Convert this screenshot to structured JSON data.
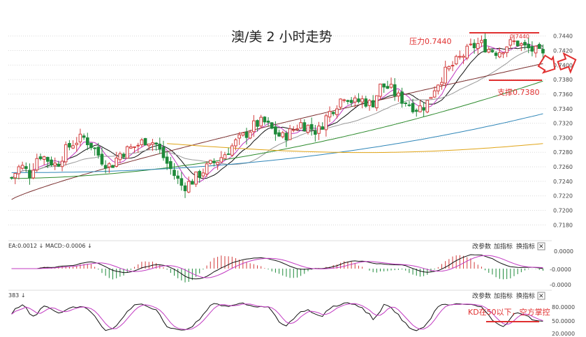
{
  "chart_data": {
    "type": "candlestick",
    "title": "澳/美 2 小时走势",
    "main_panel": {
      "y_ticks": [
        "0.7440",
        "0.7420",
        "0.7400",
        "0.7380",
        "0.7360",
        "0.7340",
        "0.7320",
        "0.7300",
        "0.7280",
        "0.7260",
        "0.7240",
        "0.7220",
        "0.7200",
        "0.7180"
      ],
      "ylim": [
        0.7165,
        0.7455
      ],
      "grid": true,
      "annotations": {
        "resistance": {
          "label": "压力0.7440",
          "value": 0.744,
          "peak_label": "0.7440"
        },
        "support": {
          "label": "支撑0.7380",
          "value": 0.738
        }
      },
      "price_path": [
        0.7245,
        0.7262,
        0.725,
        0.7278,
        0.727,
        0.7262,
        0.7283,
        0.7295,
        0.73,
        0.7288,
        0.727,
        0.726,
        0.7278,
        0.7284,
        0.729,
        0.7298,
        0.7292,
        0.727,
        0.725,
        0.7232,
        0.724,
        0.7252,
        0.7262,
        0.727,
        0.7282,
        0.7295,
        0.7305,
        0.7318,
        0.7322,
        0.731,
        0.73,
        0.7308,
        0.732,
        0.7315,
        0.7308,
        0.733,
        0.7345,
        0.736,
        0.7348,
        0.7352,
        0.7345,
        0.7372,
        0.7368,
        0.7355,
        0.7348,
        0.734,
        0.7345,
        0.737,
        0.7388,
        0.74,
        0.7412,
        0.7424,
        0.743,
        0.7422,
        0.7418,
        0.7428,
        0.7432,
        0.7424,
        0.742,
        0.7412
      ]
    },
    "macd_panel": {
      "label": "EA:0.0012 ↓  MACD:-0.0006 ↓",
      "y_ticks": [
        "0.0000",
        "-0.0000",
        "-0.0000"
      ],
      "buttons": [
        "改参数",
        "加指标",
        "换指标",
        "✕"
      ]
    },
    "kd_panel": {
      "label": "383 ↓",
      "y_ticks": [
        "80.0000",
        "50.0000",
        "20.0000"
      ],
      "annotation": "KD在50以下，空方掌控",
      "buttons": [
        "改参数",
        "加指标",
        "换指标",
        "✕"
      ]
    },
    "colors": {
      "up": "#d23c3c",
      "down": "#1e8a3a",
      "ma_black": "#111111",
      "ma_magenta": "#c23ac2",
      "ma_gray": "#999999",
      "ma_brown": "#7a2e2e",
      "ma_green": "#2c8a2c",
      "ma_blue": "#2f86b8",
      "ma_orange": "#e0a416",
      "annotation": "#e03030"
    }
  }
}
